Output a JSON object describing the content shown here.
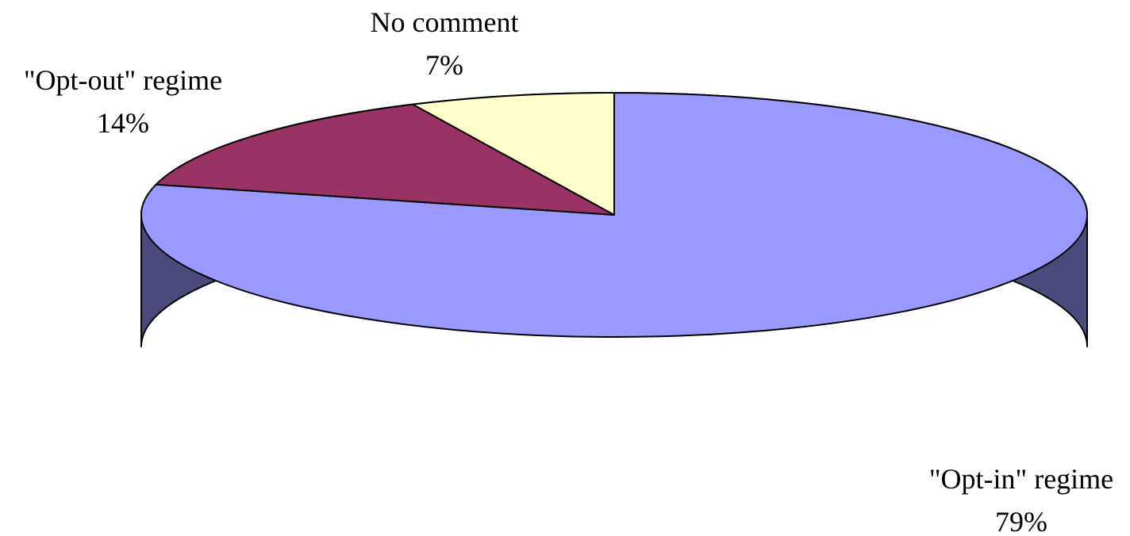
{
  "chart_data": {
    "type": "pie",
    "title": "",
    "three_d": true,
    "slices": [
      {
        "label": "\"Opt-in\" regime",
        "value": 79,
        "value_label": "79%",
        "color": "#9999ff",
        "side_color": "#4a4a7c"
      },
      {
        "label": "\"Opt-out\" regime",
        "value": 14,
        "value_label": "14%",
        "color": "#993366",
        "side_color": "#5e1f3f"
      },
      {
        "label": "No comment",
        "value": 7,
        "value_label": "7%",
        "color": "#ffffcc",
        "side_color": "#a6a680"
      }
    ],
    "legend": "none"
  }
}
